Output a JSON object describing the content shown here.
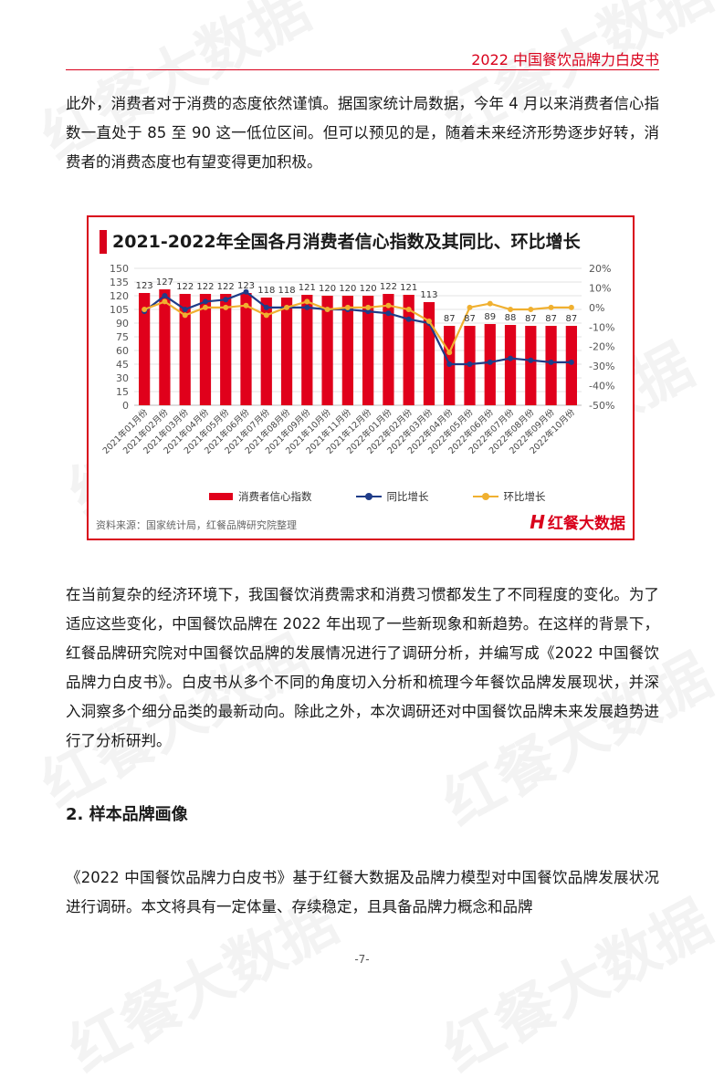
{
  "header": {
    "title": "2022 中国餐饮品牌力白皮书"
  },
  "watermark": {
    "text": "红餐大数据"
  },
  "paragraphs": {
    "p1": "此外，消费者对于消费的态度依然谨慎。据国家统计局数据，今年 4 月以来消费者信心指数一直处于 85 至 90 这一低位区间。但可以预见的是，随着未来经济形势逐步好转，消费者的消费态度也有望变得更加积极。",
    "p2": "在当前复杂的经济环境下，我国餐饮消费需求和消费习惯都发生了不同程度的变化。为了适应这些变化，中国餐饮品牌在 2022 年出现了一些新现象和新趋势。在这样的背景下，红餐品牌研究院对中国餐饮品牌的发展情况进行了调研分析，并编写成《2022 中国餐饮品牌力白皮书》。白皮书从多个不同的角度切入分析和梳理今年餐饮品牌发展现状，并深入洞察多个细分品类的最新动向。除此之外，本次调研还对中国餐饮品牌未来发展趋势进行了分析研判。",
    "p3": "《2022 中国餐饮品牌力白皮书》基于红餐大数据及品牌力模型对中国餐饮品牌发展状况进行调研。本文将具有一定体量、存续稳定，且具备品牌力概念和品牌"
  },
  "section": {
    "title": "2. 样本品牌画像"
  },
  "chart_data": {
    "type": "bar",
    "title": "2021-2022年全国各月消费者信心指数及其同比、环比增长",
    "source": "资料来源：国家统计局，红餐品牌研究院整理",
    "logo_text": "红餐大数据",
    "categories": [
      "2021年01月份",
      "2021年02月份",
      "2021年03月份",
      "2021年04月份",
      "2021年05月份",
      "2021年06月份",
      "2021年07月份",
      "2021年08月份",
      "2021年09月份",
      "2021年10月份",
      "2021年11月份",
      "2021年12月份",
      "2022年01月份",
      "2022年02月份",
      "2022年03月份",
      "2022年04月份",
      "2022年05月份",
      "2022年06月份",
      "2022年07月份",
      "2022年08月份",
      "2022年09月份",
      "2022年10月份"
    ],
    "left_axis": {
      "min": 0,
      "max": 150,
      "step": 15,
      "ticks": [
        "0",
        "15",
        "30",
        "45",
        "60",
        "75",
        "90",
        "105",
        "120",
        "135",
        "150"
      ]
    },
    "right_axis": {
      "min": -50,
      "max": 20,
      "step": 10,
      "ticks": [
        "-50%",
        "-40%",
        "-30%",
        "-20%",
        "-10%",
        "0%",
        "10%",
        "20%"
      ]
    },
    "series": [
      {
        "name": "消费者信心指数",
        "kind": "bar",
        "axis": "left",
        "color": "#e0001b",
        "values": [
          123,
          127,
          122,
          122,
          122,
          123,
          118,
          118,
          121,
          120,
          120,
          120,
          122,
          121,
          113,
          87,
          87,
          89,
          88,
          87,
          87,
          87
        ],
        "labels": [
          "123",
          "127",
          "122",
          "122",
          "122",
          "123",
          "118",
          "118",
          "121",
          "120",
          "120",
          "120",
          "122",
          "121",
          "113",
          "87",
          "87",
          "89",
          "88",
          "87",
          "87",
          "87"
        ]
      },
      {
        "name": "同比增长",
        "kind": "line",
        "axis": "right",
        "color": "#1f3c88",
        "values": [
          -2,
          6,
          -1,
          3,
          4,
          8,
          0,
          0,
          0,
          -1,
          -1,
          -2,
          -3,
          -6,
          -8,
          -29,
          -29,
          -28,
          -26,
          -27,
          -28,
          -28
        ]
      },
      {
        "name": "环比增长",
        "kind": "line",
        "axis": "right",
        "color": "#f0b030",
        "values": [
          -1,
          3,
          -4,
          0,
          0,
          1,
          -4,
          0,
          3,
          -1,
          0,
          0,
          1,
          -1,
          -7,
          -23,
          0,
          2,
          -1,
          -1,
          0,
          0
        ]
      }
    ],
    "legend": {
      "position": "bottom"
    }
  },
  "page": {
    "number": "-7-"
  }
}
